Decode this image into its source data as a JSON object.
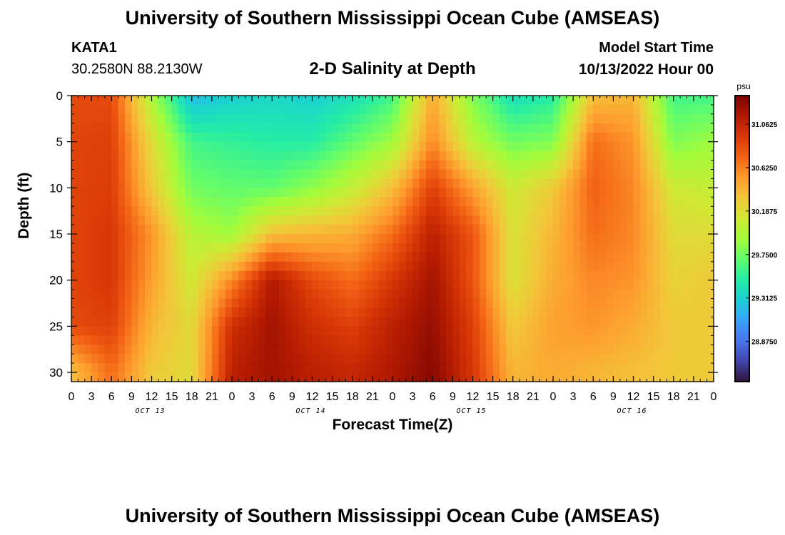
{
  "title": "University of Southern Mississippi Ocean Cube (AMSEAS)",
  "title_repeat": "University of Southern Mississippi Ocean Cube (AMSEAS)",
  "station": {
    "id": "KATA1",
    "coords": "30.2580N  88.2130W"
  },
  "subtitle": "2-D Salinity at Depth",
  "model_start": {
    "label": "Model Start Time",
    "value": "10/13/2022 Hour 00"
  },
  "chart_data": {
    "type": "heatmap",
    "title": "2-D Salinity at Depth",
    "xlabel": "Forecast Time(Z)",
    "ylabel": "Depth (ft)",
    "x_ticks": [
      "0",
      "3",
      "6",
      "9",
      "12",
      "15",
      "18",
      "21",
      "0",
      "3",
      "6",
      "9",
      "12",
      "15",
      "18",
      "21",
      "0",
      "3",
      "6",
      "9",
      "12",
      "15",
      "18",
      "21",
      "0",
      "3",
      "6",
      "9",
      "12",
      "15",
      "18",
      "21",
      "0"
    ],
    "x_range_hours": [
      0,
      96
    ],
    "day_labels": [
      {
        "label": "OCT 13",
        "hour": 12
      },
      {
        "label": "OCT 14",
        "hour": 36
      },
      {
        "label": "OCT 15",
        "hour": 60
      },
      {
        "label": "OCT 16",
        "hour": 84
      }
    ],
    "y_ticks": [
      "0",
      "5",
      "10",
      "15",
      "20",
      "25",
      "30"
    ],
    "y_range_ft": [
      0,
      31
    ],
    "colorbar": {
      "unit": "psu",
      "tick_labels": [
        "31.0625",
        "30.6250",
        "30.1875",
        "29.7500",
        "29.3125",
        "28.8750"
      ],
      "tick_values": [
        31.0625,
        30.625,
        30.1875,
        29.75,
        29.3125,
        28.875
      ],
      "range": [
        28.47,
        31.35
      ],
      "colors": [
        "#30123b",
        "#4145ab",
        "#4675ed",
        "#39a2fc",
        "#1bcfd4",
        "#24eca6",
        "#61fc6c",
        "#a4fc3b",
        "#d1e834",
        "#f3c63a",
        "#fe9b2d",
        "#f36315",
        "#d93806",
        "#b11901",
        "#7a0403"
      ]
    },
    "profiles_psu": {
      "description": "Approximate salinity (psu) at selected forecast hours (rows) for depths 0,5,10,15,20,25,30 ft",
      "depths_ft": [
        0,
        5,
        10,
        15,
        20,
        25,
        30
      ],
      "hours": [
        0,
        6,
        12,
        18,
        24,
        30,
        36,
        42,
        48,
        54,
        60,
        66,
        72,
        78,
        84,
        90,
        96
      ],
      "values": [
        [
          30.85,
          30.88,
          30.88,
          30.88,
          30.88,
          30.85,
          30.35
        ],
        [
          30.85,
          30.9,
          30.92,
          30.95,
          30.95,
          30.9,
          30.7
        ],
        [
          29.95,
          30.2,
          30.3,
          30.55,
          30.5,
          30.4,
          30.3
        ],
        [
          29.2,
          29.6,
          29.75,
          30.0,
          30.1,
          30.2,
          30.2
        ],
        [
          29.3,
          29.55,
          29.7,
          29.9,
          30.6,
          31.0,
          31.1
        ],
        [
          29.35,
          29.5,
          29.7,
          30.35,
          31.15,
          31.2,
          31.2
        ],
        [
          29.3,
          29.5,
          29.85,
          30.4,
          30.85,
          31.0,
          31.1
        ],
        [
          29.4,
          29.7,
          30.05,
          30.45,
          30.7,
          30.9,
          31.05
        ],
        [
          29.6,
          29.9,
          30.35,
          30.7,
          30.95,
          31.1,
          31.15
        ],
        [
          30.45,
          30.6,
          30.9,
          31.1,
          31.2,
          31.25,
          31.3
        ],
        [
          29.8,
          30.0,
          30.5,
          30.8,
          30.8,
          30.9,
          30.95
        ],
        [
          29.4,
          29.75,
          30.1,
          30.15,
          30.15,
          30.3,
          30.4
        ],
        [
          29.5,
          29.8,
          30.3,
          30.4,
          30.45,
          30.5,
          30.45
        ],
        [
          30.35,
          30.7,
          30.75,
          30.7,
          30.6,
          30.55,
          30.4
        ],
        [
          30.4,
          30.55,
          30.6,
          30.6,
          30.55,
          30.45,
          30.35
        ],
        [
          29.6,
          29.8,
          30.1,
          30.2,
          30.25,
          30.3,
          30.3
        ],
        [
          29.6,
          29.9,
          30.05,
          30.2,
          30.3,
          30.3,
          30.3
        ]
      ]
    }
  }
}
